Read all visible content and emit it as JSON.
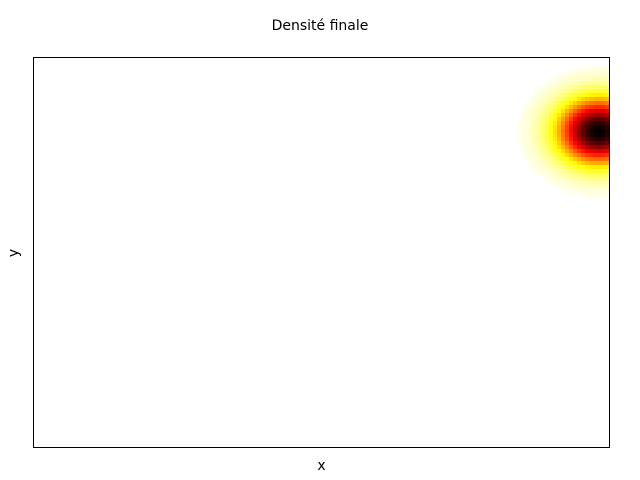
{
  "chart_data": {
    "type": "heatmap",
    "title": "Densité finale",
    "xlabel": "x",
    "ylabel": "y",
    "colormap": "hot",
    "colormap_colors": [
      "#000000",
      "#cc0000",
      "#ff0000",
      "#ffff00",
      "#ffffff"
    ],
    "grid": false,
    "axis_ticks": false,
    "density_peak": {
      "x_fraction": 0.98,
      "y_fraction": 0.81,
      "sigma_x_fraction": 0.05,
      "sigma_y_fraction": 0.06
    }
  }
}
